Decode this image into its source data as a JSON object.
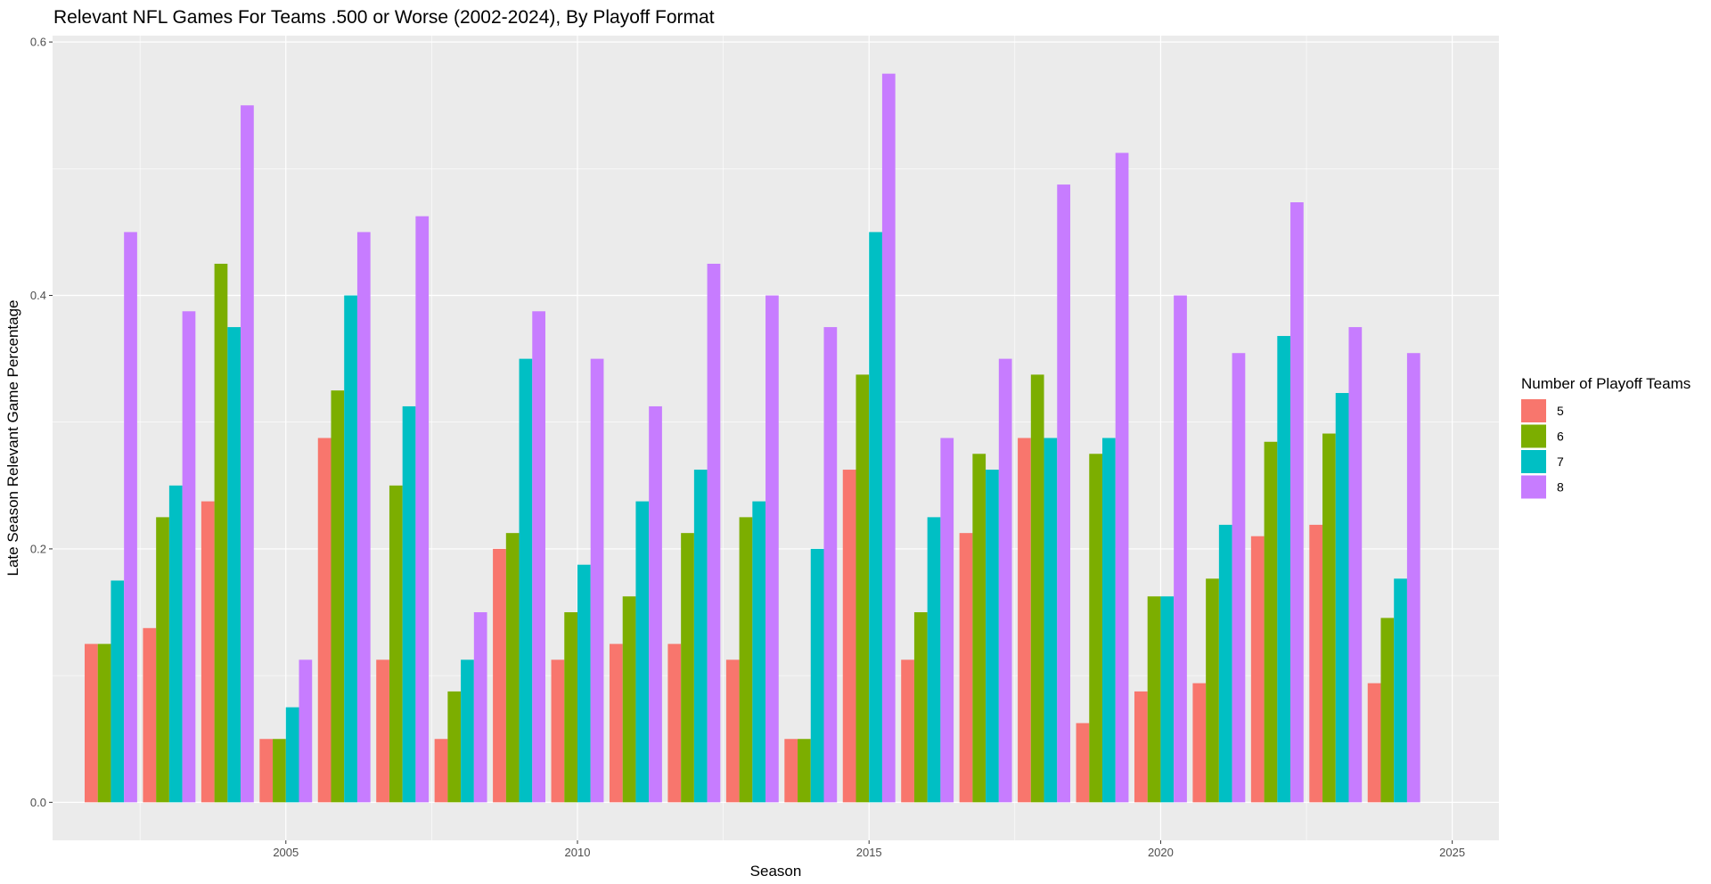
{
  "chart_data": {
    "type": "bar",
    "title": "Relevant NFL Games For Teams .500 or Worse (2002-2024), By Playoff Format",
    "xlabel": "Season",
    "ylabel": "Late Season Relevant Game Percentage",
    "xlim": [
      2001.0,
      2025.8
    ],
    "ylim": [
      -0.03,
      0.605
    ],
    "x_ticks": [
      "2005",
      "2010",
      "2015",
      "2020",
      "2025"
    ],
    "y_ticks": [
      "0.0",
      "0.2",
      "0.4",
      "0.6"
    ],
    "grid": true,
    "legend": {
      "title": "Number of Playoff Teams",
      "position": "right"
    },
    "x": [
      2002,
      2003,
      2004,
      2005,
      2006,
      2007,
      2008,
      2009,
      2010,
      2011,
      2012,
      2013,
      2014,
      2015,
      2016,
      2017,
      2018,
      2019,
      2020,
      2021,
      2022,
      2023,
      2024
    ],
    "series": [
      {
        "name": "5",
        "color": "#F8766D",
        "values": [
          0.125,
          0.1375,
          0.2375,
          0.05,
          0.2875,
          0.1125,
          0.05,
          0.2,
          0.1125,
          0.125,
          0.125,
          0.1125,
          0.05,
          0.2625,
          0.1125,
          0.2125,
          0.2875,
          0.0625,
          0.0875,
          0.094,
          0.21,
          0.219,
          0.094
        ]
      },
      {
        "name": "6",
        "color": "#7CAE00",
        "values": [
          0.125,
          0.225,
          0.425,
          0.05,
          0.325,
          0.25,
          0.0875,
          0.2125,
          0.15,
          0.1625,
          0.2125,
          0.225,
          0.05,
          0.3375,
          0.15,
          0.275,
          0.3375,
          0.275,
          0.1625,
          0.1765,
          0.2845,
          0.291,
          0.1455
        ]
      },
      {
        "name": "7",
        "color": "#00BFC4",
        "values": [
          0.175,
          0.25,
          0.375,
          0.075,
          0.4,
          0.3125,
          0.1125,
          0.35,
          0.1875,
          0.2375,
          0.2625,
          0.2375,
          0.2,
          0.45,
          0.225,
          0.2625,
          0.2875,
          0.2875,
          0.1625,
          0.219,
          0.368,
          0.323,
          0.1765
        ]
      },
      {
        "name": "8",
        "color": "#C77CFF",
        "values": [
          0.45,
          0.3875,
          0.55,
          0.1125,
          0.45,
          0.4625,
          0.15,
          0.3875,
          0.35,
          0.3125,
          0.425,
          0.4,
          0.375,
          0.575,
          0.2875,
          0.35,
          0.4875,
          0.5125,
          0.4,
          0.3545,
          0.4735,
          0.375,
          0.3545
        ]
      }
    ]
  }
}
